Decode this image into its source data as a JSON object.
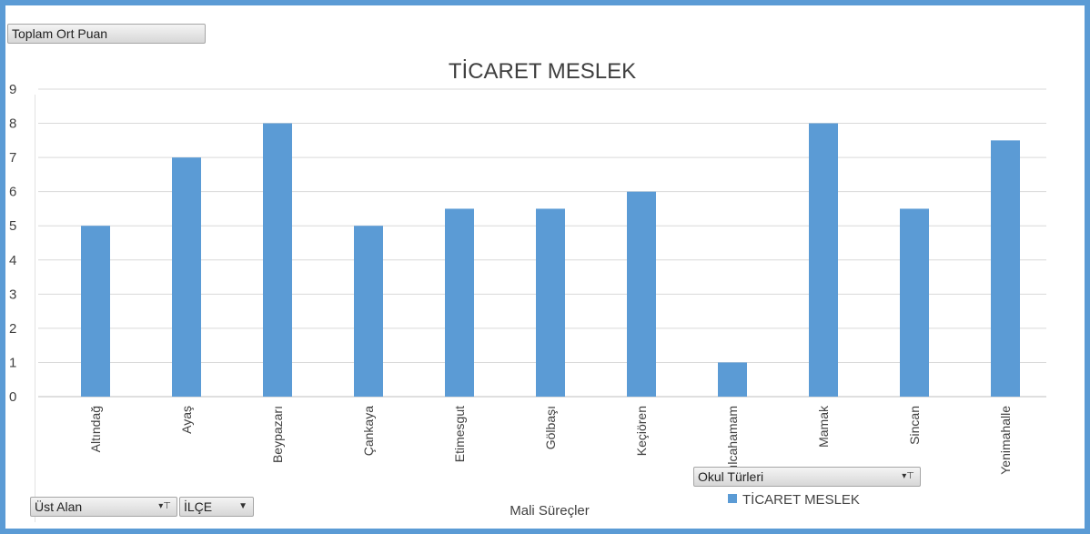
{
  "pivot_fields": {
    "measure": "Toplam Ort Puan",
    "axis_field_1": "Üst Alan",
    "axis_field_2": "İLÇE",
    "legend_field": "Okul Türleri"
  },
  "colors": {
    "bar": "#5b9bd5",
    "frame": "#5b9bd5",
    "grid": "#d9d9d9"
  },
  "chart_data": {
    "type": "bar",
    "title": "TİCARET MESLEK",
    "xlabel": "Mali Süreçler",
    "ylabel": "",
    "ylim": [
      0,
      9
    ],
    "yticks": [
      "0",
      "1",
      "2",
      "3",
      "4",
      "5",
      "6",
      "7",
      "8",
      "9"
    ],
    "grid": true,
    "legend_position": "bottom-right",
    "categories": [
      "Altındağ",
      "Ayaş",
      "Beypazarı",
      "Çankaya",
      "Etimesgut",
      "Gölbaşı",
      "Keçiören",
      "Kızılcahamam",
      "Mamak",
      "Sincan",
      "Yenimahalle"
    ],
    "series": [
      {
        "name": "TİCARET MESLEK",
        "values": [
          5,
          7,
          8,
          5,
          5.5,
          5.5,
          6,
          1,
          8,
          5.5,
          7.5
        ]
      }
    ]
  }
}
